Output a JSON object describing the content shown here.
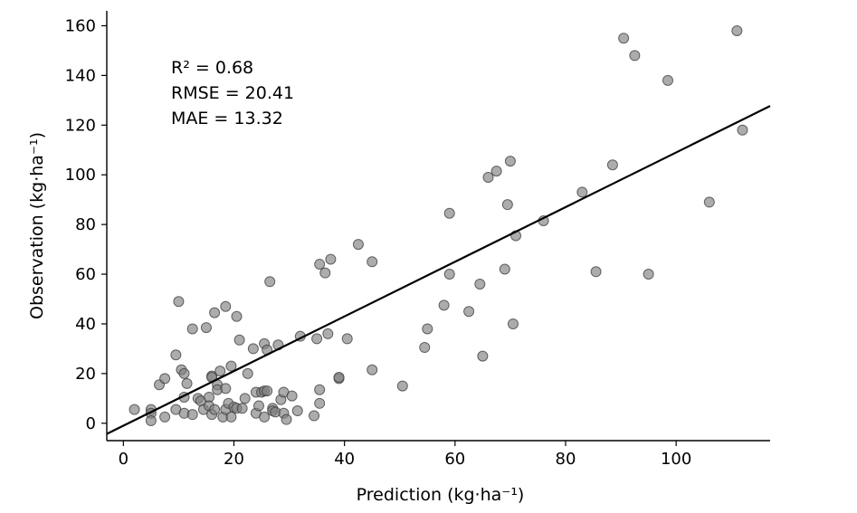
{
  "chart_data": {
    "type": "scatter",
    "title": "",
    "xlabel": "Prediction (kg·ha⁻¹)",
    "ylabel": "Observation (kg·ha⁻¹)",
    "xlim": [
      -3,
      117
    ],
    "ylim": [
      -7,
      166
    ],
    "xticks": [
      0,
      20,
      40,
      60,
      80,
      100
    ],
    "yticks": [
      0,
      20,
      40,
      60,
      80,
      100,
      120,
      140,
      160
    ],
    "grid": false,
    "legend": "none",
    "annotations": {
      "r2_label": "R² = 0.68",
      "rmse_label": "RMSE = 20.41",
      "mae_label": "MAE = 13.32"
    },
    "fit_line": {
      "slope": 1.1,
      "intercept": -1.0
    },
    "marker_color": "#7f7f7f",
    "line_color": "#000000",
    "points": [
      {
        "x": 2,
        "y": 5.5
      },
      {
        "x": 5,
        "y": 5.5
      },
      {
        "x": 5,
        "y": 4
      },
      {
        "x": 5,
        "y": 1
      },
      {
        "x": 6.5,
        "y": 15.5
      },
      {
        "x": 7.5,
        "y": 18
      },
      {
        "x": 7.5,
        "y": 2.5
      },
      {
        "x": 9.5,
        "y": 27.5
      },
      {
        "x": 9.5,
        "y": 5.5
      },
      {
        "x": 10,
        "y": 49
      },
      {
        "x": 10.5,
        "y": 21.5
      },
      {
        "x": 11,
        "y": 20
      },
      {
        "x": 11,
        "y": 10.5
      },
      {
        "x": 11,
        "y": 4
      },
      {
        "x": 11.5,
        "y": 16
      },
      {
        "x": 12.5,
        "y": 3.5
      },
      {
        "x": 12.5,
        "y": 38
      },
      {
        "x": 13.5,
        "y": 10
      },
      {
        "x": 14,
        "y": 9
      },
      {
        "x": 14.5,
        "y": 5.5
      },
      {
        "x": 15,
        "y": 38.5
      },
      {
        "x": 15.5,
        "y": 10.5
      },
      {
        "x": 15.5,
        "y": 7
      },
      {
        "x": 16,
        "y": 19
      },
      {
        "x": 16,
        "y": 18.5
      },
      {
        "x": 16,
        "y": 3.5
      },
      {
        "x": 16.5,
        "y": 44.5
      },
      {
        "x": 16.5,
        "y": 5.5
      },
      {
        "x": 17,
        "y": 15.5
      },
      {
        "x": 17,
        "y": 13.5
      },
      {
        "x": 17.5,
        "y": 21
      },
      {
        "x": 18,
        "y": 2.5
      },
      {
        "x": 18.5,
        "y": 47
      },
      {
        "x": 18.5,
        "y": 14
      },
      {
        "x": 18.5,
        "y": 5.5
      },
      {
        "x": 19,
        "y": 8
      },
      {
        "x": 19.5,
        "y": 2.5
      },
      {
        "x": 19.5,
        "y": 23
      },
      {
        "x": 20,
        "y": 6.5
      },
      {
        "x": 20.5,
        "y": 43
      },
      {
        "x": 20.5,
        "y": 6
      },
      {
        "x": 21,
        "y": 33.5
      },
      {
        "x": 21.5,
        "y": 6
      },
      {
        "x": 22,
        "y": 10
      },
      {
        "x": 22.5,
        "y": 20
      },
      {
        "x": 23.5,
        "y": 30
      },
      {
        "x": 24,
        "y": 12.5
      },
      {
        "x": 24,
        "y": 4
      },
      {
        "x": 24.5,
        "y": 7
      },
      {
        "x": 25,
        "y": 12.5
      },
      {
        "x": 25.5,
        "y": 2.5
      },
      {
        "x": 25.5,
        "y": 13
      },
      {
        "x": 25.5,
        "y": 32
      },
      {
        "x": 26,
        "y": 29.5
      },
      {
        "x": 26,
        "y": 13
      },
      {
        "x": 26.5,
        "y": 57
      },
      {
        "x": 27,
        "y": 6
      },
      {
        "x": 27,
        "y": 5
      },
      {
        "x": 27.5,
        "y": 4.5
      },
      {
        "x": 28,
        "y": 31.5
      },
      {
        "x": 28.5,
        "y": 9.5
      },
      {
        "x": 29,
        "y": 12.5
      },
      {
        "x": 29,
        "y": 4
      },
      {
        "x": 29.5,
        "y": 1.5
      },
      {
        "x": 30.5,
        "y": 11
      },
      {
        "x": 31.5,
        "y": 5
      },
      {
        "x": 32,
        "y": 35
      },
      {
        "x": 34.5,
        "y": 3
      },
      {
        "x": 35,
        "y": 34
      },
      {
        "x": 35.5,
        "y": 13.5
      },
      {
        "x": 35.5,
        "y": 8
      },
      {
        "x": 35.5,
        "y": 64
      },
      {
        "x": 36.5,
        "y": 60.5
      },
      {
        "x": 37,
        "y": 36
      },
      {
        "x": 37.5,
        "y": 66
      },
      {
        "x": 39,
        "y": 18
      },
      {
        "x": 39,
        "y": 18.5
      },
      {
        "x": 40.5,
        "y": 34
      },
      {
        "x": 42.5,
        "y": 72
      },
      {
        "x": 45,
        "y": 65
      },
      {
        "x": 45,
        "y": 21.5
      },
      {
        "x": 50.5,
        "y": 15
      },
      {
        "x": 54.5,
        "y": 30.5
      },
      {
        "x": 55,
        "y": 38
      },
      {
        "x": 58,
        "y": 47.5
      },
      {
        "x": 59,
        "y": 60
      },
      {
        "x": 59,
        "y": 84.5
      },
      {
        "x": 62.5,
        "y": 45
      },
      {
        "x": 64.5,
        "y": 56
      },
      {
        "x": 65,
        "y": 27
      },
      {
        "x": 66,
        "y": 99
      },
      {
        "x": 67.5,
        "y": 101.5
      },
      {
        "x": 69,
        "y": 62
      },
      {
        "x": 69.5,
        "y": 88
      },
      {
        "x": 70,
        "y": 105.5
      },
      {
        "x": 70.5,
        "y": 40
      },
      {
        "x": 71,
        "y": 75.5
      },
      {
        "x": 76,
        "y": 81.5
      },
      {
        "x": 83,
        "y": 93
      },
      {
        "x": 85.5,
        "y": 61
      },
      {
        "x": 88.5,
        "y": 104
      },
      {
        "x": 90.5,
        "y": 155
      },
      {
        "x": 92.5,
        "y": 148
      },
      {
        "x": 95,
        "y": 60
      },
      {
        "x": 98.5,
        "y": 138
      },
      {
        "x": 106,
        "y": 89
      },
      {
        "x": 111,
        "y": 158
      },
      {
        "x": 112,
        "y": 118
      }
    ]
  }
}
